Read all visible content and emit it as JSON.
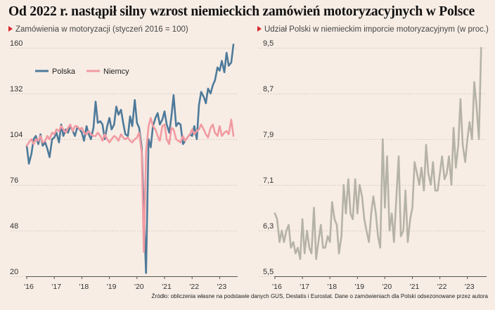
{
  "title": "Od 2022 r. nastąpił silny wzrost niemieckich zamówień motoryzacyjnych w Polsce",
  "source": "Źródło: obliczenia własne na podstawie danych GUS, Destatis i Eurostat. Dane o zamówieniach dla Polski odsezonowane przez autora",
  "colors": {
    "polska": "#4e7a9a",
    "niemcy": "#f29aa2",
    "share": "#b5b3a6",
    "background": "#f7ede5",
    "accent": "#d9262b"
  },
  "chart_data": [
    {
      "type": "line",
      "subtitle": "Zamówienia w motoryzacji (styczeń 2016 = 100)",
      "xlabel": "",
      "ylabel": "",
      "ylim": [
        20,
        160
      ],
      "yticks": [
        "160",
        "132",
        "104",
        "76",
        "48",
        "20"
      ],
      "xticks": [
        "'16",
        "'17",
        "'18",
        "'19",
        "'20",
        "'21",
        "'22",
        "'23"
      ],
      "xlim": [
        2016.0,
        2023.75
      ],
      "grid": "horizontal",
      "legend": "top-left",
      "series": [
        {
          "name": "Polska",
          "x": [
            2016.0,
            2016.08,
            2016.17,
            2016.25,
            2016.33,
            2016.42,
            2016.5,
            2016.58,
            2016.67,
            2016.75,
            2016.83,
            2016.92,
            2017.0,
            2017.08,
            2017.17,
            2017.25,
            2017.33,
            2017.42,
            2017.5,
            2017.58,
            2017.67,
            2017.75,
            2017.83,
            2017.92,
            2018.0,
            2018.08,
            2018.17,
            2018.25,
            2018.33,
            2018.42,
            2018.5,
            2018.58,
            2018.67,
            2018.75,
            2018.83,
            2018.92,
            2019.0,
            2019.08,
            2019.17,
            2019.25,
            2019.33,
            2019.42,
            2019.5,
            2019.58,
            2019.67,
            2019.75,
            2019.83,
            2019.92,
            2020.0,
            2020.08,
            2020.17,
            2020.25,
            2020.33,
            2020.42,
            2020.5,
            2020.58,
            2020.67,
            2020.75,
            2020.83,
            2020.92,
            2021.0,
            2021.08,
            2021.17,
            2021.25,
            2021.33,
            2021.42,
            2021.5,
            2021.58,
            2021.67,
            2021.75,
            2021.83,
            2021.92,
            2022.0,
            2022.08,
            2022.17,
            2022.25,
            2022.33,
            2022.42,
            2022.5,
            2022.58,
            2022.67,
            2022.75,
            2022.83,
            2022.92,
            2023.0,
            2023.08,
            2023.17,
            2023.25,
            2023.33,
            2023.42,
            2023.5
          ],
          "values": [
            100,
            89,
            95,
            104,
            106,
            101,
            107,
            100,
            102,
            98,
            93,
            104,
            105,
            108,
            102,
            113,
            106,
            110,
            108,
            112,
            109,
            106,
            111,
            110,
            108,
            103,
            112,
            107,
            104,
            111,
            127,
            114,
            115,
            113,
            104,
            112,
            117,
            110,
            113,
            124,
            119,
            122,
            114,
            107,
            106,
            118,
            112,
            128,
            114,
            111,
            99,
            59,
            22,
            104,
            99,
            112,
            117,
            120,
            113,
            116,
            121,
            113,
            108,
            118,
            131,
            112,
            114,
            113,
            101,
            103,
            105,
            107,
            106,
            112,
            104,
            125,
            133,
            130,
            126,
            135,
            132,
            137,
            140,
            148,
            146,
            152,
            145,
            157,
            149,
            151,
            162
          ]
        },
        {
          "name": "Niemcy",
          "x": [
            2016.0,
            2016.08,
            2016.17,
            2016.25,
            2016.33,
            2016.42,
            2016.5,
            2016.58,
            2016.67,
            2016.75,
            2016.83,
            2016.92,
            2017.0,
            2017.08,
            2017.17,
            2017.25,
            2017.33,
            2017.42,
            2017.5,
            2017.58,
            2017.67,
            2017.75,
            2017.83,
            2017.92,
            2018.0,
            2018.08,
            2018.17,
            2018.25,
            2018.33,
            2018.42,
            2018.5,
            2018.58,
            2018.67,
            2018.75,
            2018.83,
            2018.92,
            2019.0,
            2019.08,
            2019.17,
            2019.25,
            2019.33,
            2019.42,
            2019.5,
            2019.58,
            2019.67,
            2019.75,
            2019.83,
            2019.92,
            2020.0,
            2020.08,
            2020.17,
            2020.25,
            2020.33,
            2020.42,
            2020.5,
            2020.58,
            2020.67,
            2020.75,
            2020.83,
            2020.92,
            2021.0,
            2021.08,
            2021.17,
            2021.25,
            2021.33,
            2021.42,
            2021.5,
            2021.58,
            2021.67,
            2021.75,
            2021.83,
            2021.92,
            2022.0,
            2022.08,
            2022.17,
            2022.25,
            2022.33,
            2022.42,
            2022.5,
            2022.58,
            2022.67,
            2022.75,
            2022.83,
            2022.92,
            2023.0,
            2023.08,
            2023.17,
            2023.25,
            2023.33,
            2023.42,
            2023.5
          ],
          "values": [
            100,
            102,
            104,
            101,
            104,
            103,
            106,
            102,
            103,
            106,
            104,
            108,
            107,
            110,
            109,
            112,
            110,
            108,
            111,
            113,
            109,
            112,
            112,
            110,
            111,
            108,
            107,
            109,
            107,
            106,
            106,
            108,
            106,
            103,
            107,
            104,
            102,
            104,
            106,
            105,
            103,
            107,
            105,
            104,
            105,
            103,
            102,
            104,
            105,
            108,
            96,
            35,
            96,
            112,
            117,
            112,
            110,
            106,
            103,
            112,
            113,
            104,
            101,
            111,
            110,
            104,
            103,
            102,
            106,
            103,
            105,
            107,
            110,
            107,
            109,
            110,
            113,
            110,
            107,
            105,
            111,
            113,
            108,
            106,
            112,
            106,
            108,
            109,
            107,
            116,
            106
          ]
        }
      ]
    },
    {
      "type": "line",
      "subtitle": "Udział Polski w niemieckim imporcie motoryzacyjnym (w proc.)",
      "xlabel": "",
      "ylabel": "",
      "ylim": [
        5.5,
        9.5
      ],
      "yticks": [
        "9,5",
        "8,7",
        "7,9",
        "7,1",
        "6,3",
        "5,5"
      ],
      "xticks": [
        "'16",
        "'17",
        "'18",
        "'19",
        "'20",
        "'21",
        "'22",
        "'23"
      ],
      "xlim": [
        2016.0,
        2023.75
      ],
      "grid": "horizontal",
      "series": [
        {
          "name": "",
          "x": [
            2016.0,
            2016.08,
            2016.17,
            2016.25,
            2016.33,
            2016.42,
            2016.5,
            2016.58,
            2016.67,
            2016.75,
            2016.83,
            2016.92,
            2017.0,
            2017.08,
            2017.17,
            2017.25,
            2017.33,
            2017.42,
            2017.5,
            2017.58,
            2017.67,
            2017.75,
            2017.83,
            2017.92,
            2018.0,
            2018.08,
            2018.17,
            2018.25,
            2018.33,
            2018.42,
            2018.5,
            2018.58,
            2018.67,
            2018.75,
            2018.83,
            2018.92,
            2019.0,
            2019.08,
            2019.17,
            2019.25,
            2019.33,
            2019.42,
            2019.5,
            2019.58,
            2019.67,
            2019.75,
            2019.83,
            2019.92,
            2020.0,
            2020.08,
            2020.17,
            2020.25,
            2020.33,
            2020.42,
            2020.5,
            2020.58,
            2020.67,
            2020.75,
            2020.83,
            2020.92,
            2021.0,
            2021.08,
            2021.17,
            2021.25,
            2021.33,
            2021.42,
            2021.5,
            2021.58,
            2021.67,
            2021.75,
            2021.83,
            2021.92,
            2022.0,
            2022.08,
            2022.17,
            2022.25,
            2022.33,
            2022.42,
            2022.5,
            2022.58,
            2022.67,
            2022.75,
            2022.83,
            2022.92,
            2023.0,
            2023.08,
            2023.17,
            2023.25,
            2023.33,
            2023.42,
            2023.5
          ],
          "values": [
            6.6,
            6.5,
            6.1,
            6.3,
            6.1,
            6.3,
            6.4,
            6.0,
            6.1,
            5.9,
            6.0,
            5.8,
            6.5,
            5.9,
            6.3,
            6.0,
            5.9,
            6.7,
            5.8,
            6.1,
            6.4,
            6.0,
            6.0,
            6.2,
            6.1,
            6.8,
            6.5,
            6.4,
            5.9,
            6.2,
            7.1,
            6.6,
            7.2,
            6.6,
            6.5,
            7.2,
            6.6,
            7.1,
            6.9,
            6.5,
            6.3,
            6.1,
            6.6,
            6.9,
            6.6,
            6.2,
            6.0,
            7.9,
            6.7,
            7.6,
            6.3,
            6.6,
            6.1,
            6.9,
            7.6,
            6.2,
            6.3,
            7.0,
            6.1,
            6.5,
            6.7,
            7.5,
            7.3,
            7.1,
            7.4,
            7.0,
            7.8,
            7.3,
            7.1,
            7.5,
            7.0,
            7.0,
            7.3,
            7.6,
            7.2,
            7.3,
            7.6,
            7.1,
            8.1,
            7.4,
            7.8,
            8.6,
            7.8,
            7.5,
            7.9,
            8.2,
            7.9,
            8.9,
            8.5,
            7.9,
            9.5
          ]
        }
      ]
    }
  ]
}
